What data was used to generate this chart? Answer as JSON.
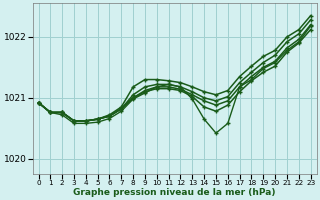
{
  "title": "Graphe pression niveau de la mer (hPa)",
  "bg_color": "#d4f0f0",
  "grid_color": "#a0d0d0",
  "line_color": "#1a5c1a",
  "xlim": [
    -0.5,
    23.5
  ],
  "ylim": [
    1019.75,
    1022.55
  ],
  "yticks": [
    1020,
    1021,
    1022
  ],
  "xticks": [
    0,
    1,
    2,
    3,
    4,
    5,
    6,
    7,
    8,
    9,
    10,
    11,
    12,
    13,
    14,
    15,
    16,
    17,
    18,
    19,
    20,
    21,
    22,
    23
  ],
  "series": [
    {
      "y": [
        1020.92,
        1020.76,
        1020.76,
        1020.62,
        1020.62,
        1020.65,
        1020.72,
        1020.85,
        1021.18,
        1021.3,
        1021.3,
        1021.28,
        1021.25,
        1021.18,
        1021.1,
        1021.05,
        1021.12,
        1021.35,
        1021.52,
        1021.68,
        1021.78,
        1022.0,
        1022.12,
        1022.35
      ],
      "lw": 1.1,
      "marker": true
    },
    {
      "y": [
        1020.92,
        1020.76,
        1020.76,
        1020.62,
        1020.62,
        1020.65,
        1020.7,
        1020.82,
        1021.05,
        1021.18,
        1021.22,
        1021.22,
        1021.18,
        1021.1,
        1021.0,
        1020.95,
        1021.02,
        1021.25,
        1021.42,
        1021.58,
        1021.7,
        1021.92,
        1022.05,
        1022.28
      ],
      "lw": 1.1,
      "marker": true
    },
    {
      "y": [
        1020.92,
        1020.76,
        1020.76,
        1020.62,
        1020.62,
        1020.65,
        1020.7,
        1020.82,
        1021.0,
        1021.12,
        1021.18,
        1021.18,
        1021.14,
        1021.05,
        1020.95,
        1020.88,
        1020.95,
        1021.18,
        1021.35,
        1021.5,
        1021.6,
        1021.82,
        1021.96,
        1022.2
      ],
      "lw": 1.1,
      "marker": true
    },
    {
      "y": [
        1020.92,
        1020.76,
        1020.76,
        1020.62,
        1020.62,
        1020.65,
        1020.7,
        1020.82,
        1021.0,
        1021.1,
        1021.15,
        1021.15,
        1021.12,
        1021.02,
        1020.85,
        1020.78,
        1020.88,
        1021.1,
        1021.28,
        1021.42,
        1021.52,
        1021.75,
        1021.9,
        1022.12
      ],
      "lw": 1.1,
      "marker": true
    },
    {
      "y": [
        1020.92,
        1020.76,
        1020.72,
        1020.58,
        1020.58,
        1020.6,
        1020.66,
        1020.78,
        1020.98,
        1021.08,
        1021.18,
        1021.22,
        1021.18,
        1020.98,
        1020.65,
        1020.42,
        1020.58,
        1021.18,
        1021.3,
        1021.48,
        1021.58,
        1021.78,
        1021.92,
        1022.18
      ],
      "lw": 1.0,
      "marker": true
    }
  ]
}
